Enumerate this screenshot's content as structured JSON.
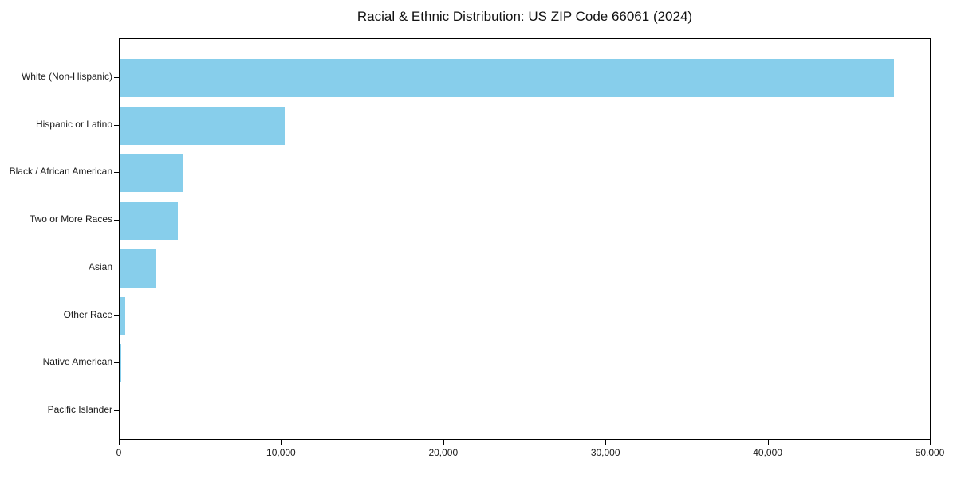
{
  "page": {
    "background_color": "#ffffff",
    "text_color": "#1a1a1a"
  },
  "chart_data": {
    "type": "bar",
    "orientation": "horizontal",
    "title": "Racial & Ethnic Distribution: US ZIP Code 66061 (2024)",
    "xlabel": "",
    "ylabel": "",
    "categories": [
      "White (Non-Hispanic)",
      "Hispanic or Latino",
      "Black / African American",
      "Two or More Races",
      "Asian",
      "Other Race",
      "Native American",
      "Pacific Islander"
    ],
    "values": [
      47800,
      10200,
      3900,
      3600,
      2200,
      350,
      80,
      20
    ],
    "xlim": [
      0,
      50000
    ],
    "x_ticks": [
      0,
      10000,
      20000,
      30000,
      40000,
      50000
    ],
    "x_tick_labels": [
      "0",
      "10,000",
      "20,000",
      "30,000",
      "40,000",
      "50,000"
    ],
    "bar_color": "#87CEEB",
    "grid": false,
    "legend": "none",
    "frame": "full-box"
  }
}
